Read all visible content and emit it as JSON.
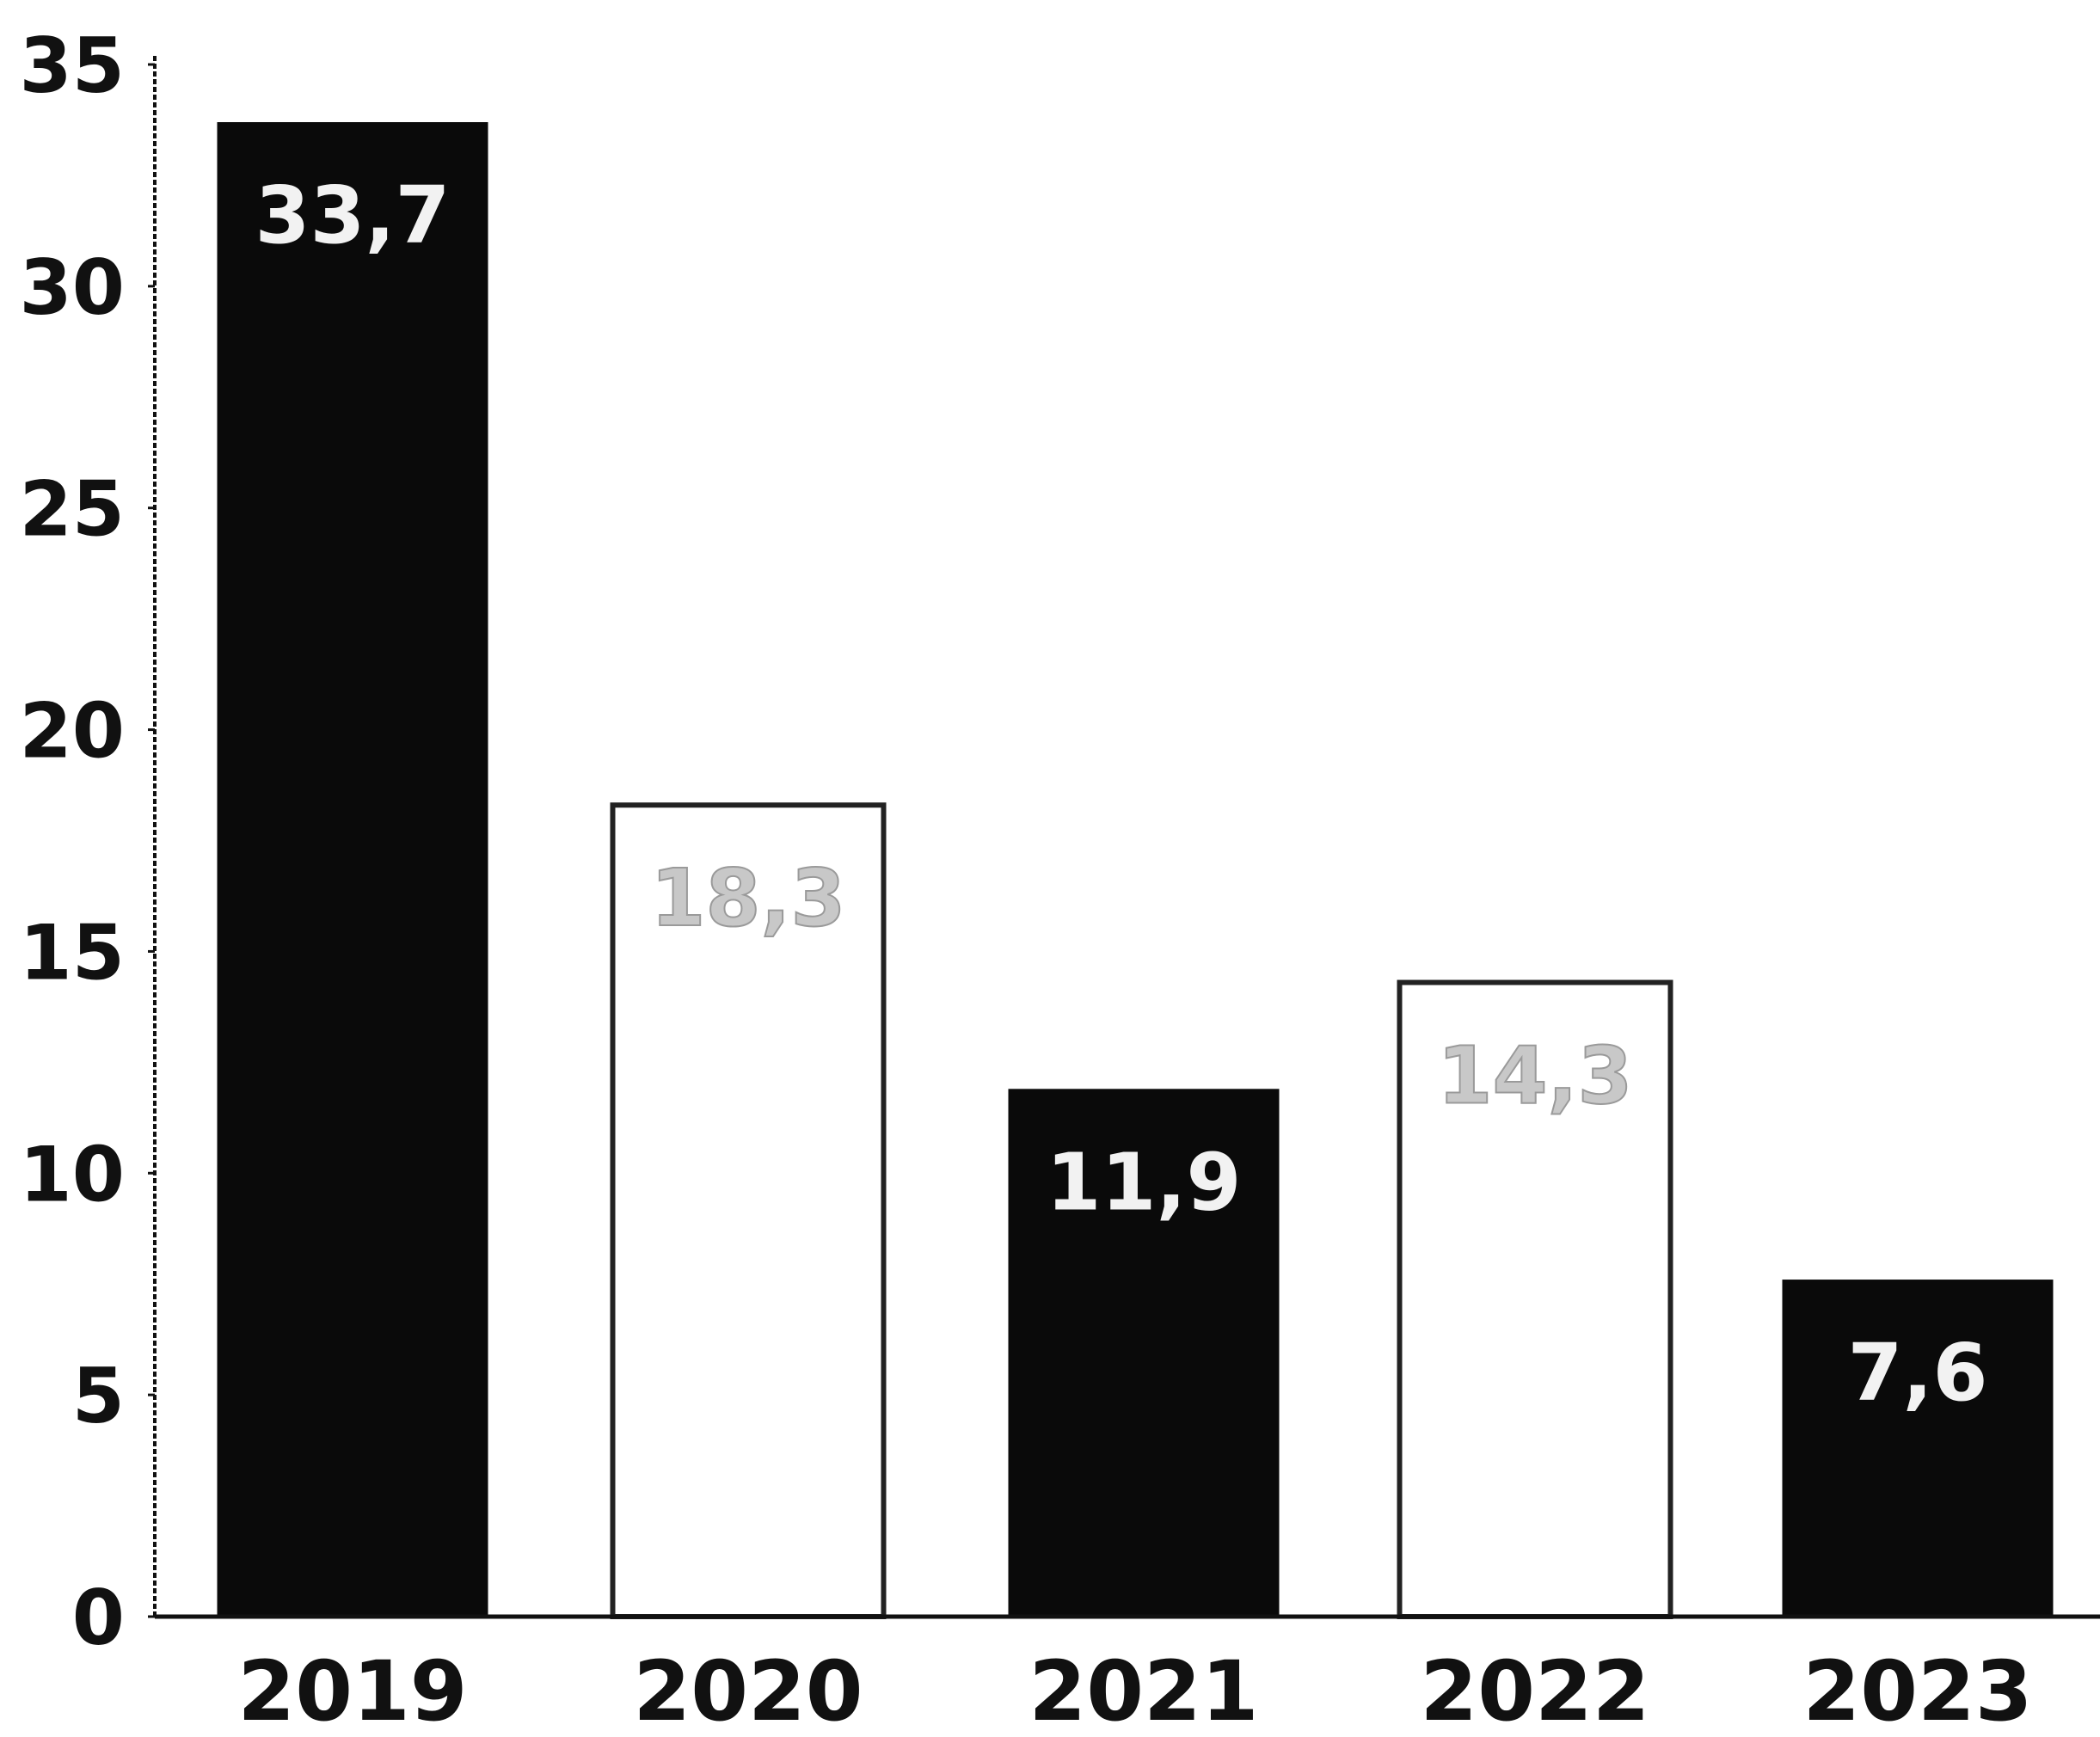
{
  "chart_data": {
    "type": "bar",
    "title": "",
    "xlabel": "",
    "ylabel": "",
    "categories": [
      "2019",
      "2020",
      "2021",
      "2022",
      "2023"
    ],
    "values": [
      33.7,
      18.3,
      11.9,
      14.3,
      7.6
    ],
    "value_labels": [
      "33,7",
      "18,3",
      "11,9",
      "14,3",
      "7,6"
    ],
    "bar_styles": [
      "solid",
      "hollow",
      "solid",
      "hollow",
      "solid"
    ],
    "ylim": [
      0,
      35
    ],
    "yticks": [
      0,
      5,
      10,
      15,
      20,
      25,
      30,
      35
    ],
    "grid": false,
    "legend": "none",
    "colors": {
      "solid_fill": "#0a0a0a",
      "hollow_fill": "#ffffff",
      "hollow_stroke": "#222222",
      "axis": "#111111",
      "text": "#111111",
      "label_on_dark": "#f2f2f2",
      "label_on_light": "#c8c8c8"
    }
  }
}
